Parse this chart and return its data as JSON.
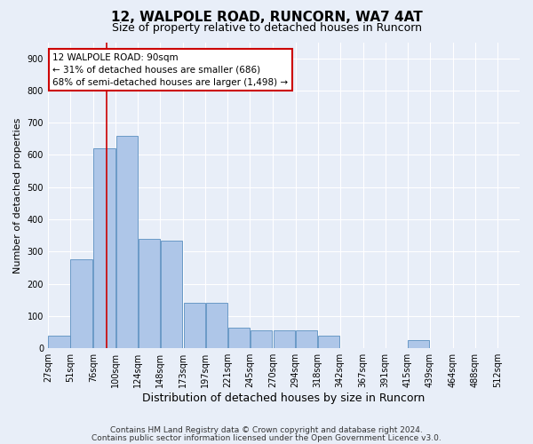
{
  "title1": "12, WALPOLE ROAD, RUNCORN, WA7 4AT",
  "title2": "Size of property relative to detached houses in Runcorn",
  "xlabel": "Distribution of detached houses by size in Runcorn",
  "ylabel": "Number of detached properties",
  "bins": [
    27,
    51,
    76,
    100,
    124,
    148,
    173,
    197,
    221,
    245,
    270,
    294,
    318,
    342,
    367,
    391,
    415,
    439,
    464,
    488,
    512
  ],
  "values": [
    40,
    275,
    620,
    660,
    340,
    335,
    140,
    140,
    65,
    55,
    55,
    55,
    40,
    0,
    0,
    0,
    25,
    0,
    0,
    0,
    0
  ],
  "bar_color": "#aec6e8",
  "bar_edge_color": "#5a8fc0",
  "property_size": 90,
  "red_line_color": "#cc0000",
  "annotation_text": "12 WALPOLE ROAD: 90sqm\n← 31% of detached houses are smaller (686)\n68% of semi-detached houses are larger (1,498) →",
  "annotation_box_color": "#ffffff",
  "annotation_box_edge_color": "#cc0000",
  "ylim": [
    0,
    950
  ],
  "yticks": [
    0,
    100,
    200,
    300,
    400,
    500,
    600,
    700,
    800,
    900
  ],
  "footnote1": "Contains HM Land Registry data © Crown copyright and database right 2024.",
  "footnote2": "Contains public sector information licensed under the Open Government Licence v3.0.",
  "background_color": "#e8eef8",
  "grid_color": "#ffffff",
  "title1_fontsize": 11,
  "title2_fontsize": 9,
  "xlabel_fontsize": 9,
  "ylabel_fontsize": 8,
  "tick_fontsize": 7,
  "annotation_fontsize": 7.5,
  "footnote_fontsize": 6.5
}
